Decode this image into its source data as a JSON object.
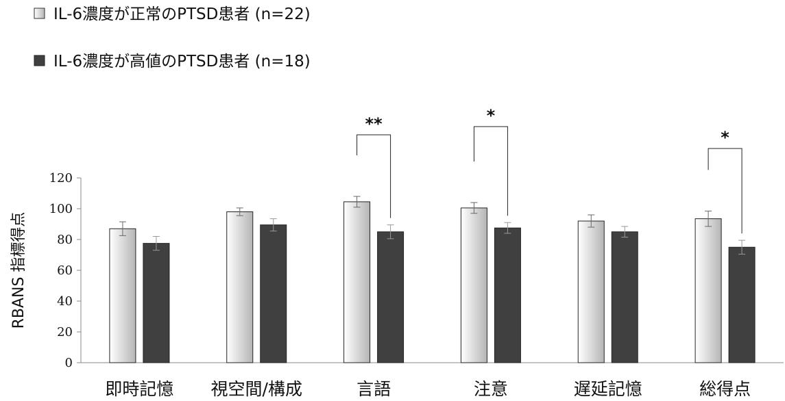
{
  "chart_data": {
    "type": "bar",
    "ylabel": "RBANS 指標得点",
    "xlabel": "",
    "ylim": [
      0,
      120
    ],
    "yticks": [
      0,
      20,
      40,
      60,
      80,
      100,
      120
    ],
    "legend_position": "top-left",
    "categories": [
      "即時記憶",
      "視空間/構成",
      "言語",
      "注意",
      "遅延記憶",
      "総得点"
    ],
    "series": [
      {
        "name": "IL-6濃度が正常のPTSD患者 (n=22)",
        "style": "light-gradient",
        "values": [
          87,
          98,
          104.5,
          100.5,
          92,
          93.5
        ],
        "errors": [
          4.5,
          2.5,
          3.5,
          3.5,
          4,
          5
        ]
      },
      {
        "name": "IL-6濃度が高値のPTSD患者 (n=18)",
        "style": "dark",
        "values": [
          77.5,
          89.5,
          85,
          87.5,
          85,
          75
        ],
        "errors": [
          4.5,
          4,
          4.5,
          3.5,
          3.5,
          4.5
        ]
      }
    ],
    "significance": [
      {
        "category": "言語",
        "label": "**"
      },
      {
        "category": "注意",
        "label": "*"
      },
      {
        "category": "総得点",
        "label": "*"
      }
    ],
    "colors": {
      "light_top": "#ffffff",
      "light_bottom": "#b8b8b8",
      "dark": "#404040",
      "axis": "#888888"
    }
  }
}
